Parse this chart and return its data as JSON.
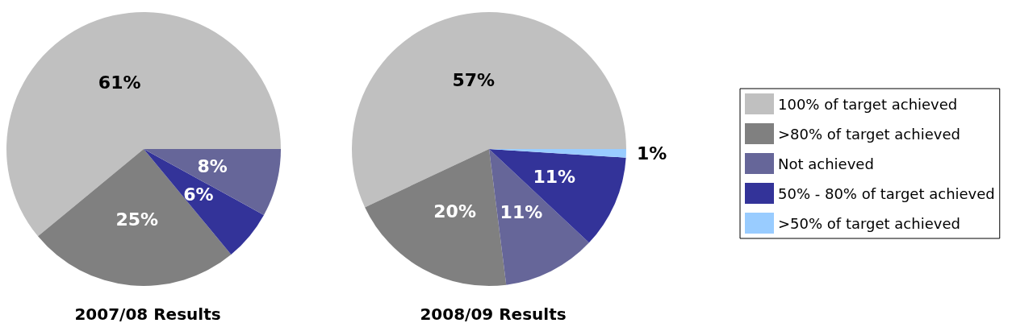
{
  "chart_data": [
    {
      "type": "pie",
      "title": "2007/08 Results",
      "categories": [
        null,
        null,
        null,
        null
      ],
      "values": [
        61,
        25,
        6,
        8
      ],
      "colors": [
        "#c0c0c0",
        "#808080",
        "#333399",
        "#666699"
      ],
      "value_labels": [
        "61%",
        "25%",
        "6%",
        "8%"
      ],
      "legend": false
    },
    {
      "type": "pie",
      "title": "2008/09 Results",
      "categories": [
        "100% of target achieved",
        ">80% of target achieved",
        "Not achieved",
        "50% - 80% of target achieved",
        ">50% of target achieved"
      ],
      "values": [
        57,
        20,
        11,
        11,
        1
      ],
      "colors": [
        "#c0c0c0",
        "#808080",
        "#666699",
        "#333399",
        "#99ccff"
      ],
      "value_labels": [
        "57%",
        "20%",
        "11%",
        "11%",
        "1%"
      ],
      "legend": "right"
    }
  ]
}
